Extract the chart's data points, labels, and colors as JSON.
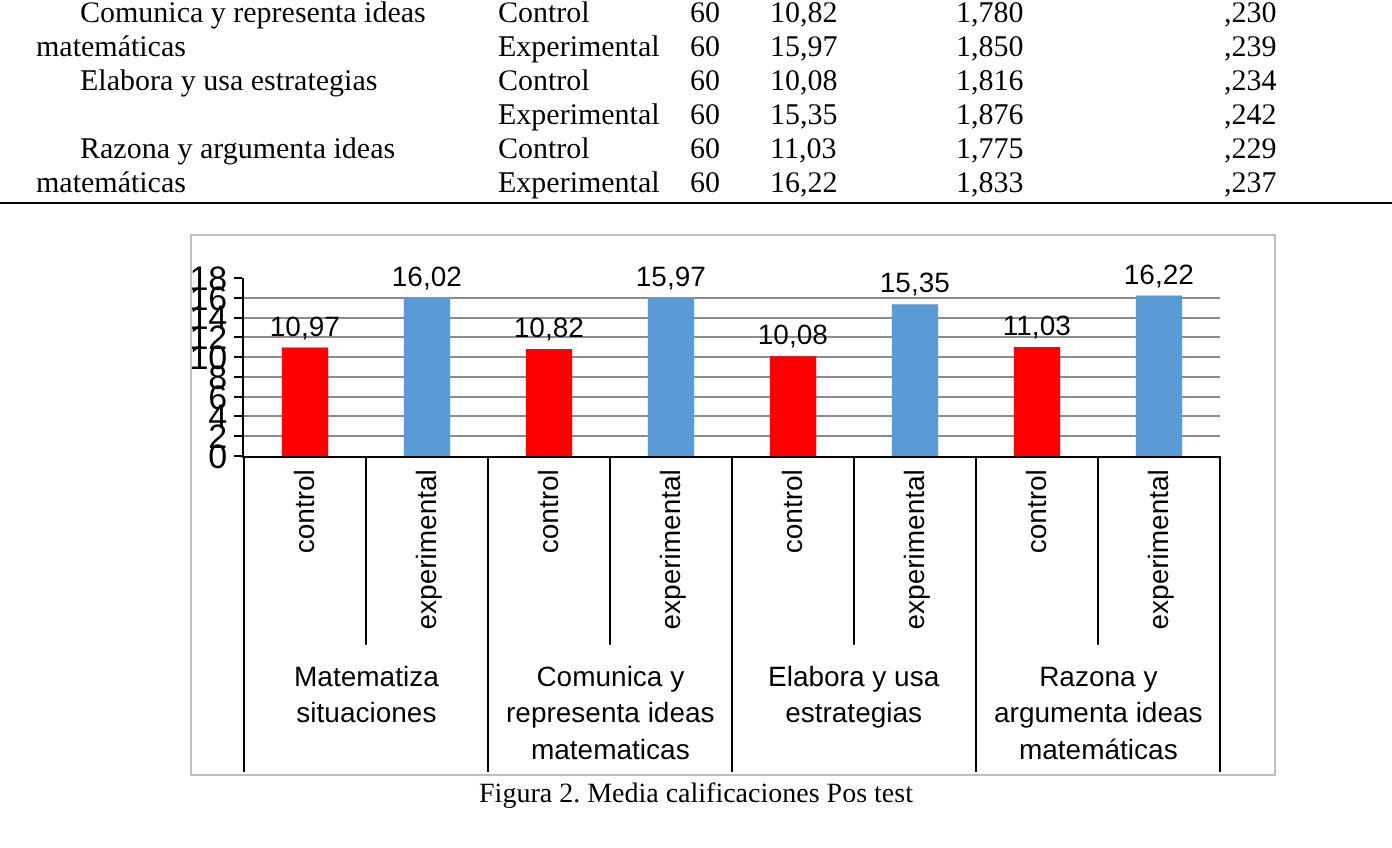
{
  "chart_data": {
    "type": "bar",
    "title": "Figura 2. Media calificaciones Pos test",
    "categories": [
      "control",
      "experimental",
      "control",
      "experimental",
      "control",
      "experimental",
      "control",
      "experimental"
    ],
    "values": [
      10.97,
      16.02,
      10.82,
      15.97,
      10.08,
      15.35,
      11.03,
      16.22
    ],
    "colors": [
      "#ff0000",
      "#5b9bd5",
      "#ff0000",
      "#5b9bd5",
      "#ff0000",
      "#5b9bd5",
      "#ff0000",
      "#5b9bd5"
    ],
    "value_labels": [
      "10,97",
      "16,02",
      "10,82",
      "15,97",
      "10,08",
      "15,35",
      "11,03",
      "16,22"
    ],
    "ylim": [
      0,
      18
    ],
    "yticks": [
      0,
      2,
      4,
      6,
      8,
      10,
      12,
      14,
      16,
      18
    ],
    "grid": "y",
    "annotations": [
      "Matematiza situaciones",
      "Comunica y representa ideas matematicas",
      "Elabora y usa estrategias",
      "Razona y argumenta ideas matemáticas",
      "Comunica y representa ideas matemáticas\tControl\t60\t10,82\t1,780\t,230",
      "\tExperimental\t60\t15,97\t1,850\t,239",
      "Elabora y usa estrategias\tControl\t60\t10,08\t1,816\t,234",
      "\tExperimental\t60\t15,35\t1,876\t,242",
      "Razona y argumenta ideas matemáticas\tControl\t60\t11,03\t1,775\t,229",
      "\tExperimental\t60\t16,22\t1,833\t,237"
    ]
  }
}
